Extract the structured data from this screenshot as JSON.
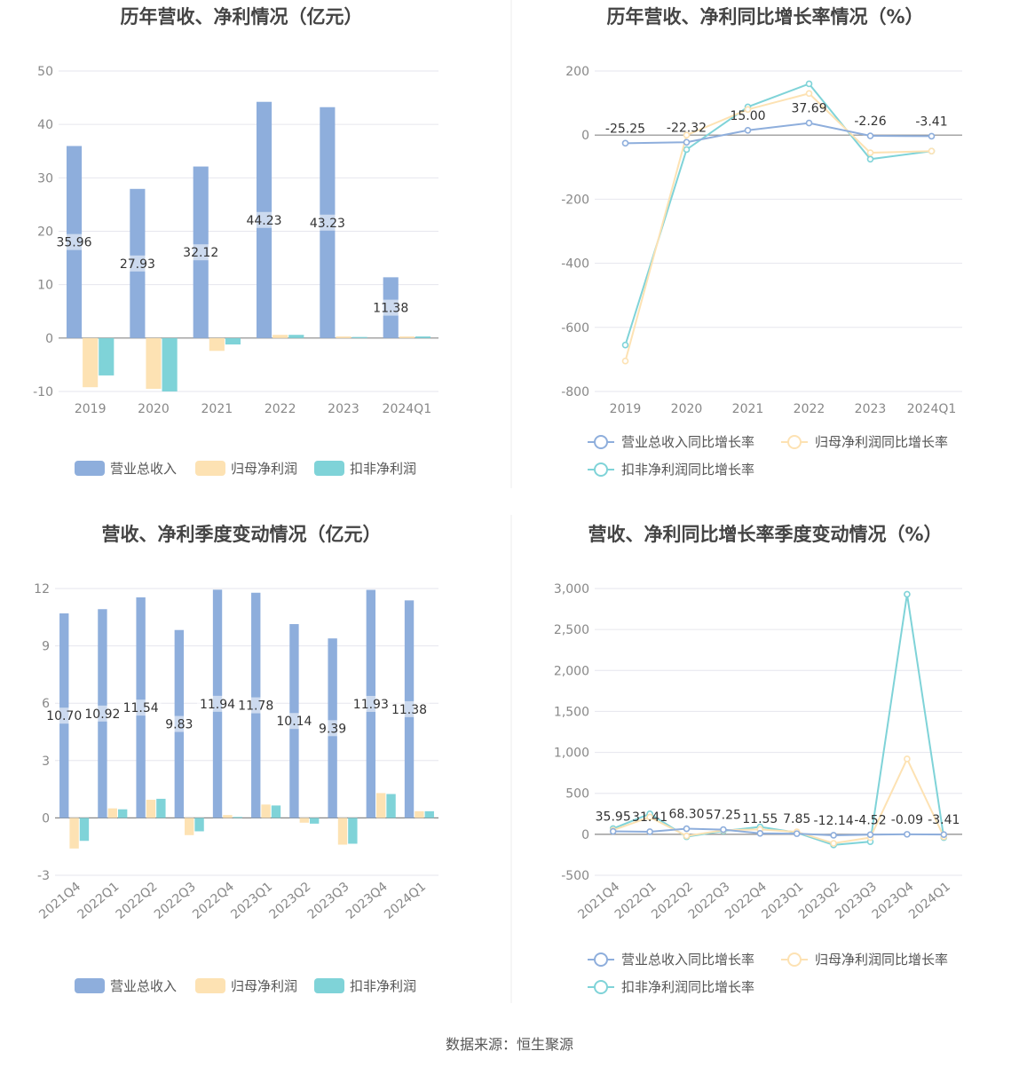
{
  "source_label": "数据来源：恒生聚源",
  "colors": {
    "revenue": "#8eaedc",
    "net_profit": "#fde2b3",
    "deducted_profit": "#7fd3d8"
  },
  "chart_data": [
    {
      "type": "bar",
      "title": "历年营收、净利情况（亿元）",
      "categories": [
        "2019",
        "2020",
        "2021",
        "2022",
        "2023",
        "2024Q1"
      ],
      "ylim": [
        -10,
        50
      ],
      "yticks": [
        -10,
        0,
        10,
        20,
        30,
        40,
        50
      ],
      "yticks_labels": [
        "-10",
        "0",
        "10",
        "20",
        "30",
        "40",
        "50"
      ],
      "grid": true,
      "legend_position": "bottom",
      "series": [
        {
          "name": "营业总收入",
          "values": [
            35.96,
            27.93,
            32.12,
            44.23,
            43.23,
            11.38
          ],
          "labels": [
            "35.96",
            "27.93",
            "32.12",
            "44.23",
            "43.23",
            "11.38"
          ]
        },
        {
          "name": "归母净利润",
          "values": [
            -9.2,
            -9.5,
            -2.4,
            0.6,
            0.3,
            0.3
          ]
        },
        {
          "name": "扣非净利润",
          "values": [
            -7.0,
            -10.0,
            -1.2,
            0.6,
            0.2,
            0.3
          ]
        }
      ]
    },
    {
      "type": "line",
      "title": "历年营收、净利同比增长率情况（%）",
      "categories": [
        "2019",
        "2020",
        "2021",
        "2022",
        "2023",
        "2024Q1"
      ],
      "ylim": [
        -800,
        200
      ],
      "yticks": [
        -800,
        -600,
        -400,
        -200,
        0,
        200
      ],
      "yticks_labels": [
        "-800",
        "-600",
        "-400",
        "-200",
        "0",
        "200"
      ],
      "grid": true,
      "legend_position": "bottom",
      "series": [
        {
          "name": "营业总收入同比增长率",
          "values": [
            -25.25,
            -22.32,
            15.0,
            37.69,
            -2.26,
            -3.41
          ],
          "labels": [
            "-25.25",
            "-22.32",
            "15.00",
            "37.69",
            "-2.26",
            "-3.41"
          ]
        },
        {
          "name": "归母净利润同比增长率",
          "values": [
            -705,
            0,
            80,
            130,
            -55,
            -50
          ]
        },
        {
          "name": "扣非净利润同比增长率",
          "values": [
            -655,
            -45,
            88,
            160,
            -75,
            -50
          ]
        }
      ]
    },
    {
      "type": "bar",
      "title": "营收、净利季度变动情况（亿元）",
      "categories": [
        "2021Q4",
        "2022Q1",
        "2022Q2",
        "2022Q3",
        "2022Q4",
        "2023Q1",
        "2023Q2",
        "2023Q3",
        "2023Q4",
        "2024Q1"
      ],
      "ylim": [
        -3,
        12
      ],
      "yticks": [
        -3,
        0,
        3,
        6,
        9,
        12
      ],
      "yticks_labels": [
        "-3",
        "0",
        "3",
        "6",
        "9",
        "12"
      ],
      "grid": true,
      "legend_position": "bottom",
      "series": [
        {
          "name": "营业总收入",
          "values": [
            10.7,
            10.92,
            11.54,
            9.83,
            11.94,
            11.78,
            10.14,
            9.39,
            11.93,
            11.38
          ],
          "labels": [
            "10.70",
            "10.92",
            "11.54",
            "9.83",
            "11.94",
            "11.78",
            "10.14",
            "9.39",
            "11.93",
            "11.38"
          ]
        },
        {
          "name": "归母净利润",
          "values": [
            -1.6,
            0.5,
            0.95,
            -0.9,
            0.15,
            0.7,
            -0.25,
            -1.4,
            1.3,
            0.35
          ]
        },
        {
          "name": "扣非净利润",
          "values": [
            -1.2,
            0.45,
            1.0,
            -0.7,
            0.05,
            0.65,
            -0.3,
            -1.35,
            1.25,
            0.35
          ]
        }
      ]
    },
    {
      "type": "line",
      "title": "营收、净利同比增长率季度变动情况（%）",
      "categories": [
        "2021Q4",
        "2022Q1",
        "2022Q2",
        "2022Q3",
        "2022Q4",
        "2023Q1",
        "2023Q2",
        "2023Q3",
        "2023Q4",
        "2024Q1"
      ],
      "ylim": [
        -500,
        3000
      ],
      "yticks": [
        -500,
        0,
        500,
        1000,
        1500,
        2000,
        2500,
        3000
      ],
      "yticks_labels": [
        "-500",
        "0",
        "500",
        "1,000",
        "1,500",
        "2,000",
        "2,500",
        "3,000"
      ],
      "grid": true,
      "legend_position": "bottom",
      "series": [
        {
          "name": "营业总收入同比增长率",
          "values": [
            35.95,
            31.41,
            68.3,
            57.25,
            11.55,
            7.85,
            -12.14,
            -4.52,
            -0.09,
            -3.41
          ],
          "labels": [
            "35.95",
            "31.41",
            "68.30",
            "57.25",
            "11.55",
            "7.85",
            "-12.14",
            "-4.52",
            "-0.09",
            "-3.41"
          ]
        },
        {
          "name": "归母净利润同比增长率",
          "values": [
            50,
            210,
            -20,
            50,
            60,
            30,
            -110,
            -40,
            920,
            -30
          ]
        },
        {
          "name": "扣非净利润同比增长率",
          "values": [
            70,
            250,
            -30,
            40,
            90,
            20,
            -130,
            -90,
            2930,
            -40
          ]
        }
      ]
    }
  ]
}
